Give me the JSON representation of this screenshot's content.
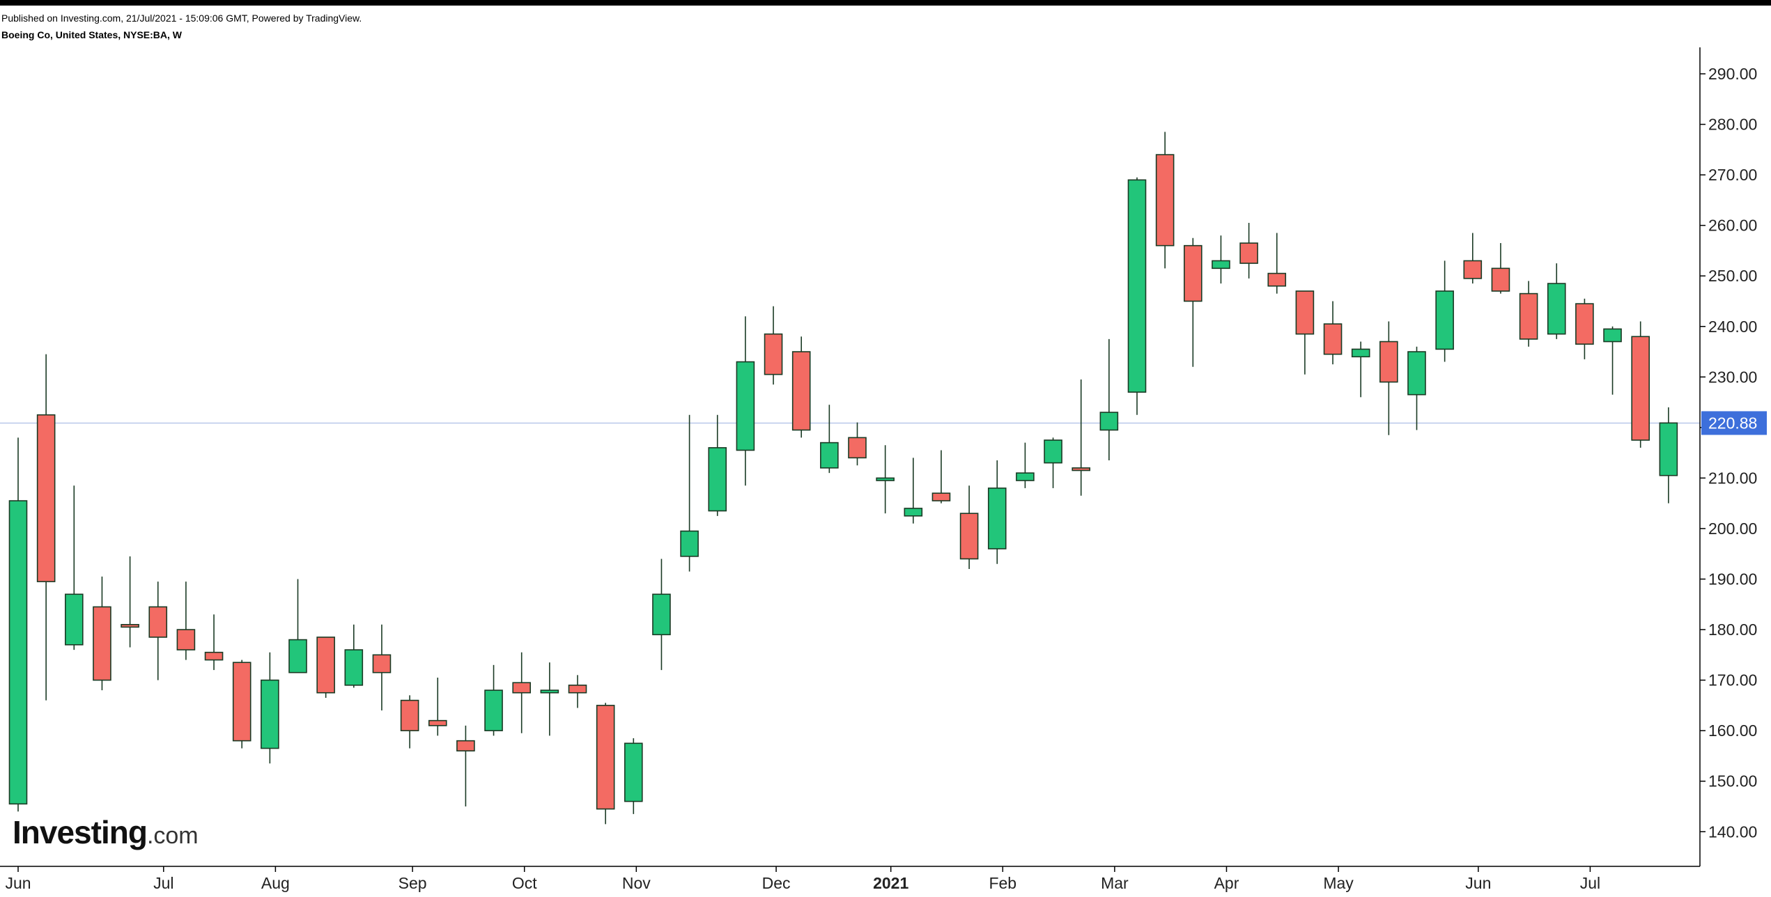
{
  "header": {
    "published": "Published on Investing.com, 21/Jul/2021 - 15:09:06 GMT, Powered by TradingView.",
    "symbol": "Boeing Co, United States, NYSE:BA, W"
  },
  "logo": {
    "main": "Investing",
    "suffix": ".com"
  },
  "colors": {
    "up": "#22c57a",
    "down": "#f36b63",
    "wick": "#1a3a24",
    "price_line": "#b8c8ea",
    "price_label_bg": "#3d6fdb",
    "axis": "#000000"
  },
  "chart_data": {
    "type": "candlestick",
    "interval": "W",
    "ylim": [
      133,
      296
    ],
    "y_ticks": [
      "140.00",
      "150.00",
      "160.00",
      "170.00",
      "180.00",
      "190.00",
      "200.00",
      "210.00",
      "220.00",
      "230.00",
      "240.00",
      "250.00",
      "260.00",
      "270.00",
      "280.00",
      "290.00"
    ],
    "x_ticks": [
      {
        "label": "Jun",
        "bold": false,
        "index": 0
      },
      {
        "label": "Jul",
        "bold": false,
        "index": 5.2
      },
      {
        "label": "Aug",
        "bold": false,
        "index": 9.2
      },
      {
        "label": "Sep",
        "bold": false,
        "index": 14.1
      },
      {
        "label": "Oct",
        "bold": false,
        "index": 18.1
      },
      {
        "label": "Nov",
        "bold": false,
        "index": 22.1
      },
      {
        "label": "Dec",
        "bold": false,
        "index": 27.1
      },
      {
        "label": "2021",
        "bold": true,
        "index": 31.2
      },
      {
        "label": "Feb",
        "bold": false,
        "index": 35.2
      },
      {
        "label": "Mar",
        "bold": false,
        "index": 39.2
      },
      {
        "label": "Apr",
        "bold": false,
        "index": 43.2
      },
      {
        "label": "May",
        "bold": false,
        "index": 47.2
      },
      {
        "label": "Jun",
        "bold": false,
        "index": 52.2
      },
      {
        "label": "Jul",
        "bold": false,
        "index": 56.2
      }
    ],
    "last_price": 220.88,
    "last_price_label": "220.88",
    "candles": [
      {
        "o": 145.5,
        "h": 218.0,
        "l": 144.0,
        "c": 205.5
      },
      {
        "o": 222.5,
        "h": 234.5,
        "l": 166.0,
        "c": 189.5
      },
      {
        "o": 177.0,
        "h": 208.5,
        "l": 176.0,
        "c": 187.0
      },
      {
        "o": 184.5,
        "h": 190.5,
        "l": 168.0,
        "c": 170.0
      },
      {
        "o": 181.0,
        "h": 194.5,
        "l": 176.5,
        "c": 180.5
      },
      {
        "o": 184.5,
        "h": 189.5,
        "l": 170.0,
        "c": 178.5
      },
      {
        "o": 180.0,
        "h": 189.5,
        "l": 174.0,
        "c": 176.0
      },
      {
        "o": 175.5,
        "h": 183.0,
        "l": 172.0,
        "c": 174.0
      },
      {
        "o": 173.5,
        "h": 174.0,
        "l": 156.5,
        "c": 158.0
      },
      {
        "o": 156.5,
        "h": 175.5,
        "l": 153.5,
        "c": 170.0
      },
      {
        "o": 171.5,
        "h": 190.0,
        "l": 171.5,
        "c": 178.0
      },
      {
        "o": 178.5,
        "h": 178.5,
        "l": 166.5,
        "c": 167.5
      },
      {
        "o": 169.0,
        "h": 181.0,
        "l": 168.5,
        "c": 176.0
      },
      {
        "o": 175.0,
        "h": 181.0,
        "l": 164.0,
        "c": 171.5
      },
      {
        "o": 166.0,
        "h": 167.0,
        "l": 156.5,
        "c": 160.0
      },
      {
        "o": 162.0,
        "h": 170.5,
        "l": 159.0,
        "c": 161.0
      },
      {
        "o": 158.0,
        "h": 161.0,
        "l": 145.0,
        "c": 156.0
      },
      {
        "o": 160.0,
        "h": 173.0,
        "l": 159.0,
        "c": 168.0
      },
      {
        "o": 169.5,
        "h": 175.5,
        "l": 159.5,
        "c": 167.5
      },
      {
        "o": 167.5,
        "h": 173.5,
        "l": 159.0,
        "c": 168.0
      },
      {
        "o": 169.0,
        "h": 171.0,
        "l": 164.5,
        "c": 167.5
      },
      {
        "o": 165.0,
        "h": 165.5,
        "l": 141.5,
        "c": 144.5
      },
      {
        "o": 146.0,
        "h": 158.5,
        "l": 143.5,
        "c": 157.5
      },
      {
        "o": 179.0,
        "h": 194.0,
        "l": 172.0,
        "c": 187.0
      },
      {
        "o": 194.5,
        "h": 222.5,
        "l": 191.5,
        "c": 199.5
      },
      {
        "o": 203.5,
        "h": 222.5,
        "l": 202.5,
        "c": 216.0
      },
      {
        "o": 215.5,
        "h": 242.0,
        "l": 208.5,
        "c": 233.0
      },
      {
        "o": 238.5,
        "h": 244.0,
        "l": 228.5,
        "c": 230.5
      },
      {
        "o": 235.0,
        "h": 238.0,
        "l": 218.0,
        "c": 219.5
      },
      {
        "o": 212.0,
        "h": 224.5,
        "l": 211.0,
        "c": 217.0
      },
      {
        "o": 218.0,
        "h": 221.0,
        "l": 212.5,
        "c": 214.0
      },
      {
        "o": 209.5,
        "h": 216.5,
        "l": 203.0,
        "c": 210.0
      },
      {
        "o": 202.5,
        "h": 214.0,
        "l": 201.0,
        "c": 204.0
      },
      {
        "o": 207.0,
        "h": 215.5,
        "l": 205.0,
        "c": 205.5
      },
      {
        "o": 203.0,
        "h": 208.5,
        "l": 192.0,
        "c": 194.0
      },
      {
        "o": 196.0,
        "h": 213.5,
        "l": 193.0,
        "c": 208.0
      },
      {
        "o": 209.5,
        "h": 217.0,
        "l": 208.0,
        "c": 211.0
      },
      {
        "o": 213.0,
        "h": 218.0,
        "l": 208.0,
        "c": 217.5
      },
      {
        "o": 212.0,
        "h": 229.5,
        "l": 206.5,
        "c": 211.5
      },
      {
        "o": 219.5,
        "h": 237.5,
        "l": 213.5,
        "c": 223.0
      },
      {
        "o": 227.0,
        "h": 269.5,
        "l": 222.5,
        "c": 269.0
      },
      {
        "o": 274.0,
        "h": 278.5,
        "l": 251.5,
        "c": 256.0
      },
      {
        "o": 256.0,
        "h": 257.5,
        "l": 232.0,
        "c": 245.0
      },
      {
        "o": 251.5,
        "h": 258.0,
        "l": 248.5,
        "c": 253.0
      },
      {
        "o": 256.5,
        "h": 260.5,
        "l": 249.5,
        "c": 252.5
      },
      {
        "o": 250.5,
        "h": 258.5,
        "l": 246.5,
        "c": 248.0
      },
      {
        "o": 247.0,
        "h": 247.0,
        "l": 230.5,
        "c": 238.5
      },
      {
        "o": 240.5,
        "h": 245.0,
        "l": 232.5,
        "c": 234.5
      },
      {
        "o": 234.0,
        "h": 237.0,
        "l": 226.0,
        "c": 235.5
      },
      {
        "o": 237.0,
        "h": 241.0,
        "l": 218.5,
        "c": 229.0
      },
      {
        "o": 226.5,
        "h": 236.0,
        "l": 219.5,
        "c": 235.0
      },
      {
        "o": 235.5,
        "h": 253.0,
        "l": 233.0,
        "c": 247.0
      },
      {
        "o": 253.0,
        "h": 258.5,
        "l": 248.5,
        "c": 249.5
      },
      {
        "o": 251.5,
        "h": 256.5,
        "l": 246.5,
        "c": 247.0
      },
      {
        "o": 246.5,
        "h": 249.0,
        "l": 236.0,
        "c": 237.5
      },
      {
        "o": 238.5,
        "h": 252.5,
        "l": 237.5,
        "c": 248.5
      },
      {
        "o": 244.5,
        "h": 245.5,
        "l": 233.5,
        "c": 236.5
      },
      {
        "o": 237.0,
        "h": 240.0,
        "l": 226.5,
        "c": 239.5
      },
      {
        "o": 238.0,
        "h": 241.0,
        "l": 216.0,
        "c": 217.5
      },
      {
        "o": 210.5,
        "h": 224.0,
        "l": 205.0,
        "c": 220.9
      }
    ]
  }
}
